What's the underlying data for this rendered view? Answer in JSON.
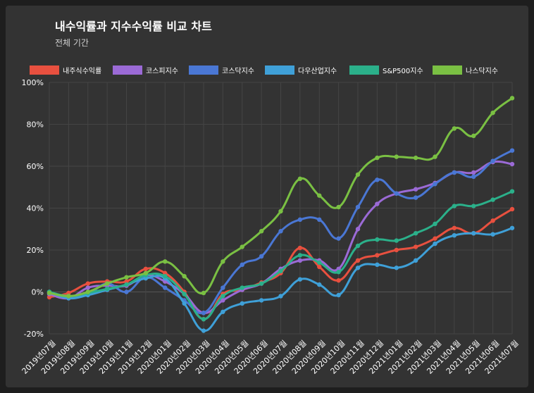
{
  "header": {
    "title": "내수익률과 지수수익률 비교 차트",
    "subtitle": "전체 기간"
  },
  "chart_data": {
    "type": "line",
    "x": [
      "2019년07월",
      "2019년08월",
      "2019년09월",
      "2019년10월",
      "2019년11월",
      "2019년12월",
      "2020년01월",
      "2020년02월",
      "2020년03월",
      "2020년04월",
      "2020년05월",
      "2020년06월",
      "2020년07월",
      "2020년08월",
      "2020년09월",
      "2020년10월",
      "2020년11월",
      "2020년12월",
      "2021년01월",
      "2021년02월",
      "2021년03월",
      "2021년04월",
      "2021년05월",
      "2021년06월",
      "2021년07월"
    ],
    "ylim": [
      -20,
      100
    ],
    "yticks": [
      "-20%",
      "0%",
      "20%",
      "40%",
      "60%",
      "80%",
      "100%"
    ],
    "grid": true,
    "legend_position": "top",
    "series": [
      {
        "name": "내주식수익률",
        "color": "#e8503f",
        "values": [
          -2.5,
          -0.5,
          4,
          5,
          5,
          11,
          9,
          0,
          -13,
          -1,
          1,
          4.5,
          9,
          21,
          12,
          5.5,
          15,
          17.5,
          20,
          21.5,
          25.5,
          30.5,
          28,
          34,
          39.5
        ]
      },
      {
        "name": "코스피지수",
        "color": "#9b6ad6",
        "values": [
          -1,
          -3,
          2,
          3,
          3,
          8,
          5,
          -1,
          -10,
          -4,
          1,
          4,
          11,
          15,
          15,
          11,
          30,
          42,
          47,
          49,
          52,
          57,
          57,
          62,
          61
        ]
      },
      {
        "name": "코스닥지수",
        "color": "#4a77d4",
        "values": [
          -0.5,
          -2,
          -1,
          4,
          0,
          7,
          2,
          -4,
          -10,
          2,
          13,
          17,
          29,
          34.5,
          34.5,
          25.5,
          40.5,
          53.5,
          47,
          45,
          51.5,
          57,
          55,
          62.5,
          67.5
        ]
      },
      {
        "name": "다우산업지수",
        "color": "#3fa0d8",
        "values": [
          0,
          -3,
          -1.5,
          1,
          3.5,
          6.5,
          6.5,
          -5.5,
          -18.5,
          -9.5,
          -5.5,
          -4,
          -2,
          6,
          3.5,
          -1.5,
          11.5,
          13,
          11.5,
          15,
          23,
          27,
          28,
          27.5,
          30.5
        ]
      },
      {
        "name": "S&P500지수",
        "color": "#2bb08a",
        "values": [
          0,
          -2,
          -0.5,
          1.5,
          3.5,
          8,
          7.5,
          -1,
          -13,
          -2,
          2,
          4,
          10,
          17.5,
          14,
          9.5,
          22,
          25,
          24.5,
          28,
          32.5,
          41,
          41,
          44,
          48
        ]
      },
      {
        "name": "나스닥지수",
        "color": "#7ac043",
        "values": [
          -0.5,
          -2,
          0,
          4,
          7,
          9,
          14.5,
          7.5,
          -0.5,
          14.5,
          21.5,
          29,
          38.5,
          54,
          46,
          40.5,
          56,
          64,
          64.5,
          64,
          64.5,
          78,
          74.5,
          85.5,
          92.5
        ]
      }
    ]
  }
}
